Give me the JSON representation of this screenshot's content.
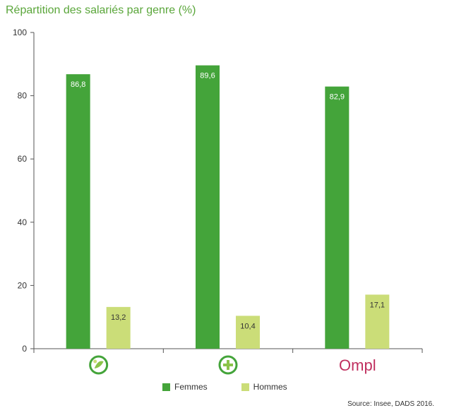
{
  "colors": {
    "title": "#5aa63a",
    "femmes": "#44a43a",
    "hommes": "#cbdd78",
    "axis": "#555555",
    "ompl_brand": "#c0305f"
  },
  "chart_data": {
    "type": "bar",
    "title": "Répartition des salariés par genre (%)",
    "categories": [
      {
        "icon": "leaf-circle-logo-icon",
        "text": ""
      },
      {
        "icon": "plus-circle-logo-icon",
        "text": ""
      },
      {
        "icon": "ompl-logo-icon",
        "text": "Ompl"
      }
    ],
    "series": [
      {
        "name": "Femmes",
        "values": [
          86.8,
          89.6,
          82.9
        ],
        "labels": [
          "86,8",
          "89,6",
          "82,9"
        ],
        "color": "#44a43a"
      },
      {
        "name": "Hommes",
        "values": [
          13.2,
          10.4,
          17.1
        ],
        "labels": [
          "13,2",
          "10,4",
          "17,1"
        ],
        "color": "#cbdd78"
      }
    ],
    "ylim": [
      0,
      100
    ],
    "yticks": [
      0,
      20,
      40,
      60,
      80,
      100
    ],
    "grid": false,
    "legend_position": "bottom-center"
  },
  "source": "Source: Insee, DADS 2016."
}
